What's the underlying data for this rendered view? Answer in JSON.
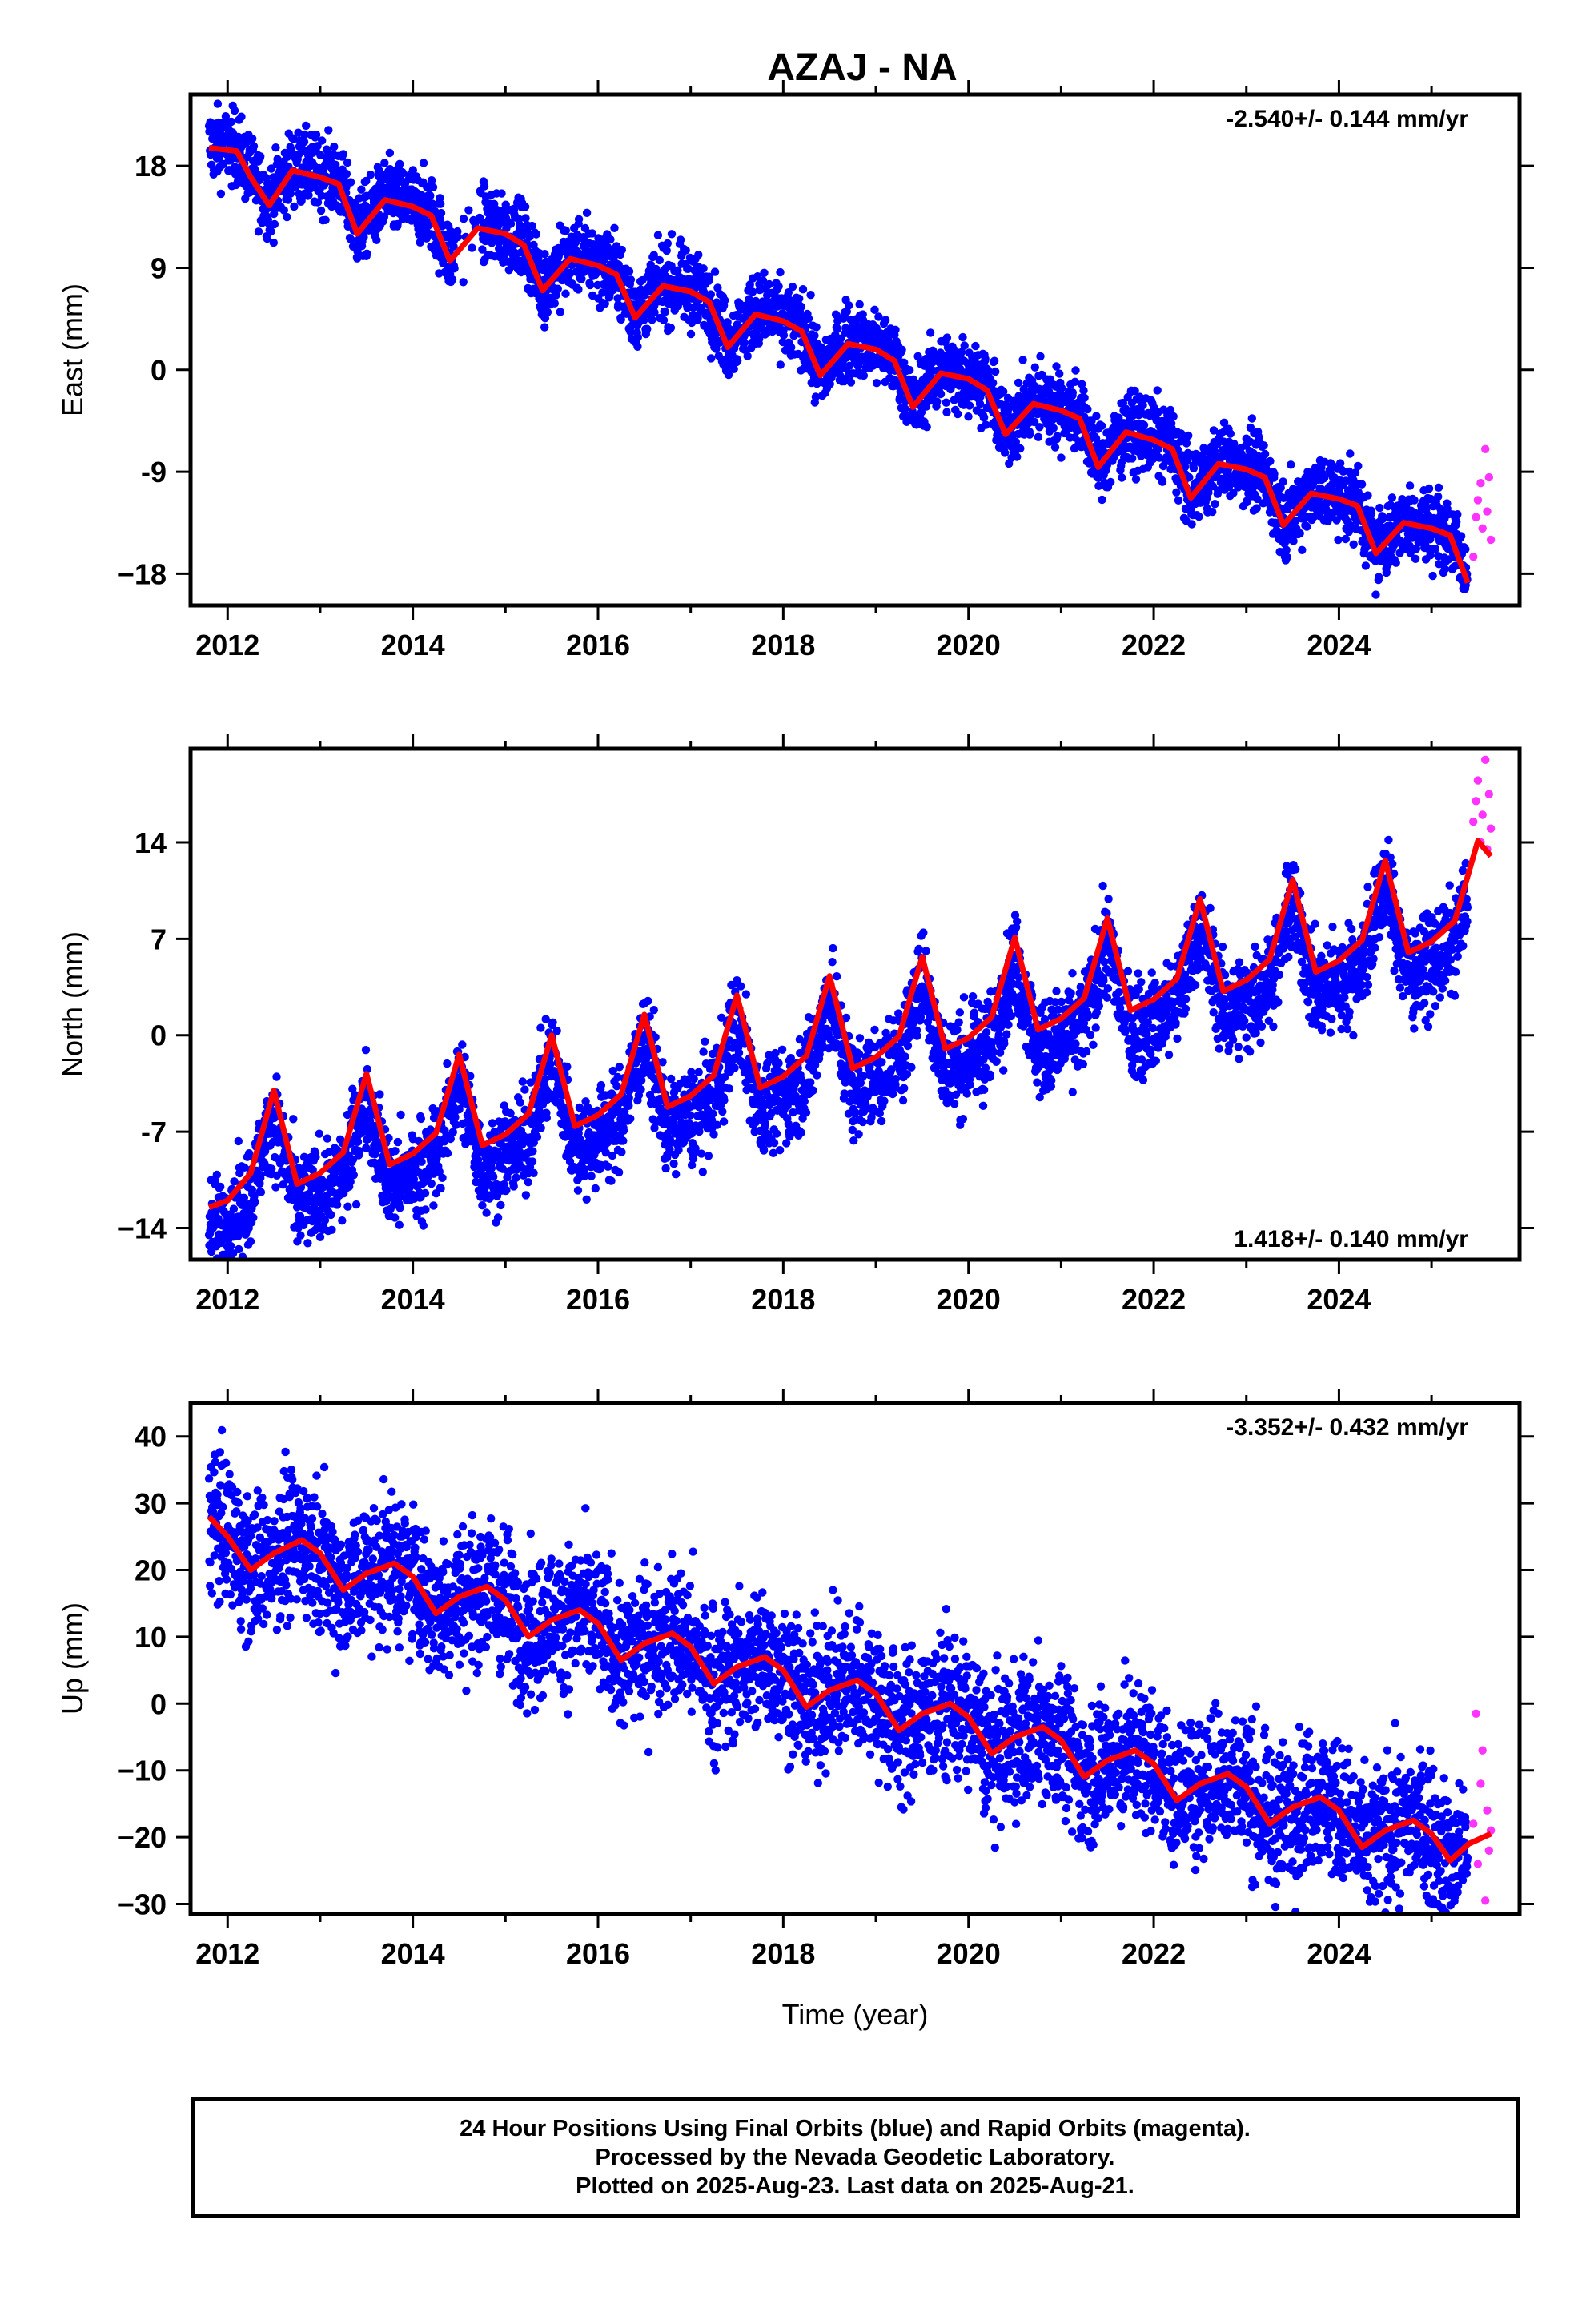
{
  "title": "AZAJ - NA",
  "colors": {
    "final": "#0000ff",
    "rapid": "#ff33ff",
    "model": "#ff0000",
    "frame": "#000000"
  },
  "chart_data": [
    {
      "type": "scatter",
      "id": "east",
      "ylabel": "East (mm)",
      "xlabel": "",
      "xlim": [
        2011.6,
        2025.95
      ],
      "ylim": [
        -20.8,
        24.3
      ],
      "xticks": [
        2012,
        2014,
        2016,
        2018,
        2020,
        2022,
        2024
      ],
      "yticks": [
        18,
        9,
        0,
        -9,
        -18
      ],
      "ytick_labels": [
        "18",
        "9",
        "0",
        "-9",
        "−18"
      ],
      "rate_text": "-2.540+/- 0.144 mm/yr",
      "rate_position": "top-right",
      "data_span": [
        2011.8,
        2025.39
      ],
      "rapid_span": [
        2025.4,
        2025.64
      ],
      "series": [
        {
          "role": "model",
          "x": [
            2011.8,
            2012.1,
            2012.25,
            2012.45,
            2012.7,
            2013.0,
            2013.2,
            2013.4,
            2013.7,
            2014.0,
            2014.2,
            2014.4,
            2014.7,
            2015.0,
            2015.2,
            2015.4,
            2015.7,
            2016.0,
            2016.2,
            2016.4,
            2016.7,
            2017.0,
            2017.2,
            2017.4,
            2017.7,
            2018.0,
            2018.2,
            2018.4,
            2018.7,
            2019.0,
            2019.2,
            2019.4,
            2019.7,
            2020.0,
            2020.2,
            2020.4,
            2020.7,
            2021.0,
            2021.2,
            2021.4,
            2021.7,
            2022.0,
            2022.2,
            2022.4,
            2022.7,
            2023.0,
            2023.2,
            2023.4,
            2023.7,
            2024.0,
            2024.2,
            2024.4,
            2024.7,
            2025.0,
            2025.2,
            2025.39
          ],
          "y": [
            19.6,
            19.3,
            17.0,
            14.5,
            17.6,
            17.0,
            16.4,
            12.0,
            15.0,
            14.4,
            13.6,
            9.6,
            12.5,
            12.0,
            11.0,
            7.0,
            9.8,
            9.2,
            8.4,
            4.6,
            7.4,
            6.9,
            6.0,
            2.0,
            4.9,
            4.3,
            3.4,
            -0.5,
            2.3,
            1.8,
            0.8,
            -3.3,
            -0.3,
            -0.8,
            -1.8,
            -5.7,
            -3.0,
            -3.6,
            -4.3,
            -8.6,
            -5.5,
            -6.2,
            -7.0,
            -11.3,
            -8.3,
            -8.8,
            -9.5,
            -13.7,
            -10.9,
            -11.4,
            -12.0,
            -16.2,
            -13.5,
            -14.0,
            -14.6,
            -18.8
          ]
        },
        {
          "role": "rapid",
          "x": [
            2025.45,
            2025.48,
            2025.5,
            2025.53,
            2025.55,
            2025.58,
            2025.6,
            2025.62,
            2025.64
          ],
          "y": [
            -16.5,
            -13.0,
            -11.5,
            -10.0,
            -14.0,
            -7.0,
            -12.5,
            -9.5,
            -15.0
          ]
        }
      ]
    },
    {
      "type": "scatter",
      "id": "north",
      "ylabel": "North (mm)",
      "xlabel": "",
      "xlim": [
        2011.6,
        2025.95
      ],
      "ylim": [
        -16.3,
        20.8
      ],
      "xticks": [
        2012,
        2014,
        2016,
        2018,
        2020,
        2022,
        2024
      ],
      "yticks": [
        14,
        7,
        0,
        -7,
        -14
      ],
      "ytick_labels": [
        "14",
        "7",
        "0",
        "-7",
        "−14"
      ],
      "rate_text": "1.418+/- 0.140 mm/yr",
      "rate_position": "bottom-right",
      "data_span": [
        2011.8,
        2025.39
      ],
      "rapid_span": [
        2025.4,
        2025.64
      ],
      "series": [
        {
          "role": "model",
          "x": [
            2011.8,
            2012.0,
            2012.25,
            2012.5,
            2012.75,
            2013.0,
            2013.25,
            2013.5,
            2013.75,
            2014.0,
            2014.25,
            2014.5,
            2014.75,
            2015.0,
            2015.25,
            2015.5,
            2015.75,
            2016.0,
            2016.25,
            2016.5,
            2016.75,
            2017.0,
            2017.25,
            2017.5,
            2017.75,
            2018.0,
            2018.25,
            2018.5,
            2018.75,
            2019.0,
            2019.25,
            2019.5,
            2019.75,
            2020.0,
            2020.25,
            2020.5,
            2020.75,
            2021.0,
            2021.25,
            2021.5,
            2021.75,
            2022.0,
            2022.25,
            2022.5,
            2022.75,
            2023.0,
            2023.25,
            2023.5,
            2023.75,
            2024.0,
            2024.25,
            2024.5,
            2024.75,
            2025.0,
            2025.25,
            2025.5,
            2025.64
          ],
          "y": [
            -12.5,
            -12.0,
            -10.0,
            -4.0,
            -10.8,
            -10.0,
            -8.5,
            -2.8,
            -9.4,
            -8.6,
            -7.1,
            -1.4,
            -8.0,
            -7.2,
            -5.7,
            0.0,
            -6.6,
            -5.8,
            -4.3,
            1.5,
            -5.2,
            -4.4,
            -2.9,
            2.9,
            -3.8,
            -3.0,
            -1.5,
            4.3,
            -2.4,
            -1.6,
            -0.1,
            5.7,
            -1.0,
            -0.2,
            1.3,
            7.1,
            0.4,
            1.2,
            2.7,
            8.5,
            1.8,
            2.6,
            4.1,
            9.9,
            3.2,
            4.0,
            5.5,
            11.3,
            4.6,
            5.4,
            6.9,
            12.7,
            6.0,
            6.8,
            8.3,
            14.1,
            13.0
          ]
        },
        {
          "role": "rapid",
          "x": [
            2025.45,
            2025.48,
            2025.5,
            2025.53,
            2025.55,
            2025.58,
            2025.6,
            2025.62,
            2025.64
          ],
          "y": [
            15.5,
            17.0,
            18.5,
            14.0,
            16.0,
            20.0,
            13.5,
            17.5,
            15.0
          ]
        }
      ]
    },
    {
      "type": "scatter",
      "id": "up",
      "ylabel": "Up (mm)",
      "xlabel": "Time (year)",
      "xlim": [
        2011.6,
        2025.95
      ],
      "ylim": [
        -31.5,
        45.0
      ],
      "xticks": [
        2012,
        2014,
        2016,
        2018,
        2020,
        2022,
        2024
      ],
      "yticks": [
        40,
        30,
        20,
        10,
        0,
        -10,
        -20,
        -30
      ],
      "ytick_labels": [
        "40",
        "30",
        "20",
        "10",
        "0",
        "−10",
        "−20",
        "−30"
      ],
      "rate_text": "-3.352+/- 0.432 mm/yr",
      "rate_position": "top-right",
      "data_span": [
        2011.8,
        2025.39
      ],
      "rapid_span": [
        2025.4,
        2025.64
      ],
      "series": [
        {
          "role": "model",
          "x": [
            2011.8,
            2012.0,
            2012.25,
            2012.5,
            2012.8,
            2013.0,
            2013.25,
            2013.5,
            2013.8,
            2014.0,
            2014.25,
            2014.5,
            2014.8,
            2015.0,
            2015.25,
            2015.5,
            2015.8,
            2016.0,
            2016.25,
            2016.5,
            2016.8,
            2017.0,
            2017.25,
            2017.5,
            2017.8,
            2018.0,
            2018.25,
            2018.5,
            2018.8,
            2019.0,
            2019.25,
            2019.5,
            2019.8,
            2020.0,
            2020.25,
            2020.5,
            2020.8,
            2021.0,
            2021.25,
            2021.5,
            2021.8,
            2022.0,
            2022.25,
            2022.5,
            2022.8,
            2023.0,
            2023.25,
            2023.5,
            2023.8,
            2024.0,
            2024.25,
            2024.5,
            2024.8,
            2025.0,
            2025.2,
            2025.4,
            2025.64
          ],
          "y": [
            28.0,
            25.0,
            20.0,
            22.5,
            24.5,
            22.5,
            17.0,
            19.5,
            21.0,
            19.0,
            13.5,
            16.0,
            17.5,
            15.5,
            10.0,
            12.5,
            14.0,
            12.0,
            6.5,
            9.0,
            10.5,
            8.5,
            3.0,
            5.5,
            7.0,
            5.0,
            -0.5,
            2.0,
            3.5,
            1.5,
            -4.0,
            -1.5,
            0.0,
            -2.0,
            -7.5,
            -5.0,
            -3.5,
            -5.5,
            -11.0,
            -8.5,
            -7.0,
            -9.0,
            -14.5,
            -12.0,
            -10.5,
            -12.5,
            -18.0,
            -15.5,
            -14.0,
            -16.0,
            -21.5,
            -19.0,
            -17.5,
            -19.5,
            -23.5,
            -21.0,
            -19.5
          ]
        },
        {
          "role": "rapid",
          "x": [
            2025.45,
            2025.48,
            2025.5,
            2025.53,
            2025.55,
            2025.58,
            2025.6,
            2025.62,
            2025.64
          ],
          "y": [
            -18.0,
            -1.5,
            -24.0,
            -12.0,
            -7.0,
            -29.5,
            -16.0,
            -22.0,
            -19.0
          ]
        }
      ]
    }
  ],
  "footer": {
    "line1": "24 Hour Positions Using Final Orbits (blue) and Rapid Orbits (magenta).",
    "line2": "Processed by the Nevada Geodetic Laboratory.",
    "line3": "Plotted on 2025-Aug-23. Last data on 2025-Aug-21."
  }
}
